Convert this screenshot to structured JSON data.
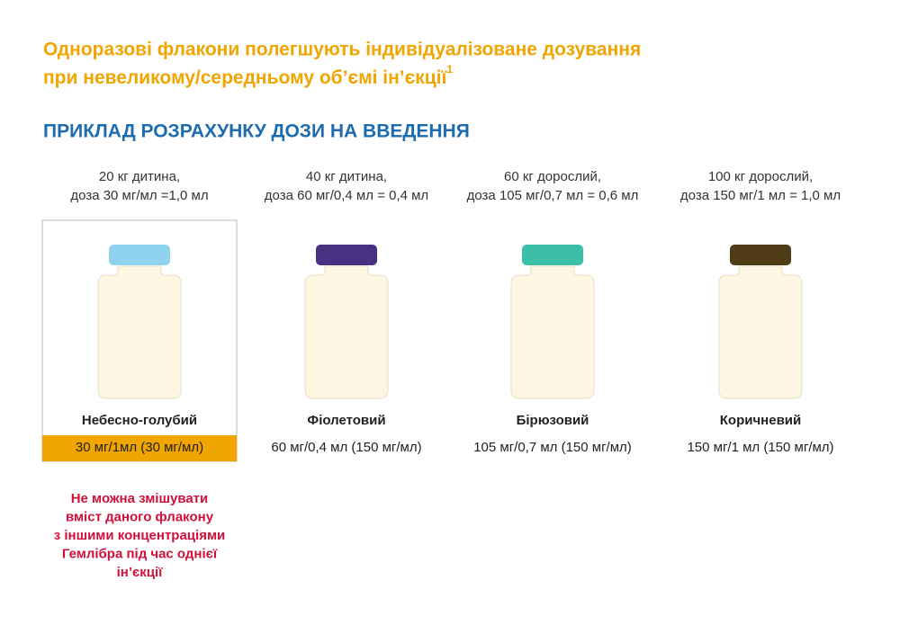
{
  "header": {
    "title_lines": [
      "Одноразові флакони полегшують індивідуалізоване дозування",
      "при невеликому/середньому об’ємі ін’єкції"
    ],
    "footnote_ref": "1",
    "subtitle": "ПРИКЛАД РОЗРАХУНКУ ДОЗИ НА ВВЕДЕННЯ"
  },
  "vials": [
    {
      "dose_lines": [
        "20 кг дитина,",
        "доза 30 мг/мл =1,0 мл"
      ],
      "color_name": "Небесно-голубий",
      "concentration": "30 мг/1мл (30 мг/мл)",
      "cap_color": "#8fd3ee",
      "highlighted": true
    },
    {
      "dose_lines": [
        "40 кг дитина,",
        "доза 60 мг/0,4 мл = 0,4 мл"
      ],
      "color_name": "Фіолетовий",
      "concentration": "60 мг/0,4 мл (150 мг/мл)",
      "cap_color": "#4a3080",
      "highlighted": false
    },
    {
      "dose_lines": [
        "60 кг дорослий,",
        "доза 105 мг/0,7 мл = 0,6 мл"
      ],
      "color_name": "Бірюзовий",
      "concentration": "105 мг/0,7 мл (150 мг/мл)",
      "cap_color": "#3cbfa8",
      "highlighted": false
    },
    {
      "dose_lines": [
        "100 кг дорослий,",
        "доза 150 мг/1 мл = 1,0 мл"
      ],
      "color_name": "Коричневий",
      "concentration": "150 мг/1 мл (150 мг/мл)",
      "cap_color": "#4e3c17",
      "highlighted": false
    }
  ],
  "warning_lines": [
    "Не можна змішувати",
    "вміст даного флакону",
    "з іншими концентраціями",
    "Гемлібра під час однієї",
    "ін’єкції"
  ]
}
